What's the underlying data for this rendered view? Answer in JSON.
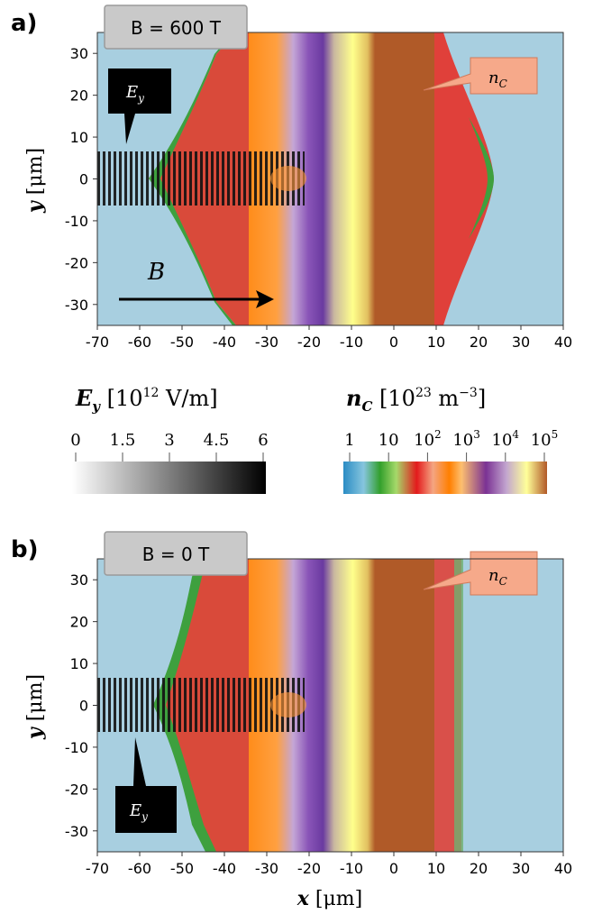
{
  "figure": {
    "panels": [
      {
        "letter": "a)",
        "field_label": "B = 600 T",
        "y_axis_label": "y",
        "y_axis_unit": "[μm]",
        "callout_field": "E",
        "callout_field_sub": "y",
        "callout_density": "n",
        "callout_density_sub": "C",
        "magnetic_label": "B",
        "x_ticks": [
          "-70",
          "-60",
          "-50",
          "-40",
          "-30",
          "-20",
          "-10",
          "0",
          "10",
          "20",
          "30",
          "40"
        ],
        "y_ticks": [
          "30",
          "20",
          "10",
          "0",
          "-10",
          "-20",
          "-30"
        ]
      },
      {
        "letter": "b)",
        "field_label": "B = 0 T",
        "y_axis_label": "y",
        "y_axis_unit": "[μm]",
        "callout_field": "E",
        "callout_field_sub": "y",
        "callout_density": "n",
        "callout_density_sub": "C",
        "x_ticks": [
          "-70",
          "-60",
          "-50",
          "-40",
          "-30",
          "-20",
          "-10",
          "0",
          "10",
          "20",
          "30",
          "40"
        ],
        "y_ticks": [
          "30",
          "20",
          "10",
          "0",
          "-10",
          "-20",
          "-30"
        ],
        "x_axis_label": "x",
        "x_axis_unit": "[μm]"
      }
    ],
    "ey_colorbar": {
      "symbol": "E",
      "symbol_sub": "y",
      "unit_prefix": "[10",
      "unit_exp": "12",
      "unit_suffix": " V/m]",
      "ticks": [
        "0",
        "1.5",
        "3",
        "4.5",
        "6"
      ]
    },
    "nc_colorbar": {
      "symbol": "n",
      "symbol_sub": "C",
      "unit_prefix": "[10",
      "unit_exp": "23",
      "unit_mid": " m",
      "unit_exp2": "−3",
      "unit_suffix": "]",
      "ticks": [
        {
          "base": "1",
          "exp": ""
        },
        {
          "base": "10",
          "exp": ""
        },
        {
          "base": "10",
          "exp": "2"
        },
        {
          "base": "10",
          "exp": "3"
        },
        {
          "base": "10",
          "exp": "4"
        },
        {
          "base": "10",
          "exp": "5"
        }
      ],
      "colors": [
        "#2b8cc4",
        "#86c5de",
        "#33a02c",
        "#a6d96a",
        "#e31a1c",
        "#f4a582",
        "#ff7f00",
        "#fdbf6f",
        "#7b3294",
        "#c2a5cf",
        "#ffff99",
        "#b15928"
      ]
    }
  }
}
